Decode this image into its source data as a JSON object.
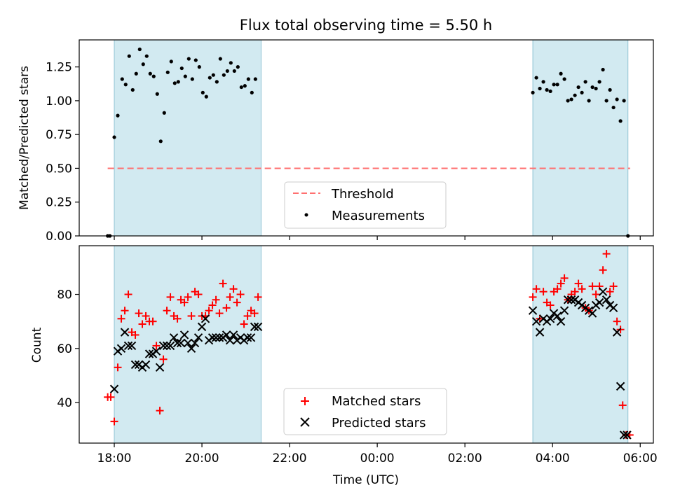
{
  "chart_data": [
    {
      "type": "scatter",
      "title": "Flux total observing time = 5.50 h",
      "ylabel": "Matched/Predicted stars",
      "xlabel": "",
      "x_unit": "hours since 18:00 UTC",
      "xlim": [
        -0.8,
        12.3
      ],
      "ylim": [
        0.0,
        1.45
      ],
      "yticks": [
        "0.00",
        "0.25",
        "0.50",
        "0.75",
        "1.00",
        "1.25"
      ],
      "ytick_values": [
        0,
        0.25,
        0.5,
        0.75,
        1.0,
        1.25
      ],
      "shaded_spans": [
        [
          0.0,
          3.35
        ],
        [
          9.55,
          11.72
        ]
      ],
      "span_color": "#add8e6",
      "threshold": {
        "name": "Threshold",
        "value": 0.5,
        "x_range": [
          -0.15,
          11.77
        ],
        "color": "#ff7070"
      },
      "legend": {
        "placement": "lower center",
        "entries": [
          "Threshold",
          "Measurements"
        ]
      },
      "series": [
        {
          "name": "Measurements",
          "color": "#000000",
          "points": [
            [
              -0.15,
              0.0
            ],
            [
              -0.1,
              0.0
            ],
            [
              0.0,
              0.73
            ],
            [
              0.08,
              0.89
            ],
            [
              0.18,
              1.16
            ],
            [
              0.26,
              1.12
            ],
            [
              0.34,
              1.33
            ],
            [
              0.42,
              1.08
            ],
            [
              0.5,
              1.2
            ],
            [
              0.58,
              1.38
            ],
            [
              0.66,
              1.27
            ],
            [
              0.74,
              1.33
            ],
            [
              0.82,
              1.2
            ],
            [
              0.9,
              1.18
            ],
            [
              0.98,
              1.05
            ],
            [
              1.06,
              0.7
            ],
            [
              1.14,
              0.91
            ],
            [
              1.22,
              1.21
            ],
            [
              1.3,
              1.29
            ],
            [
              1.38,
              1.13
            ],
            [
              1.46,
              1.14
            ],
            [
              1.54,
              1.24
            ],
            [
              1.62,
              1.18
            ],
            [
              1.7,
              1.31
            ],
            [
              1.78,
              1.16
            ],
            [
              1.86,
              1.3
            ],
            [
              1.94,
              1.25
            ],
            [
              2.02,
              1.06
            ],
            [
              2.1,
              1.03
            ],
            [
              2.18,
              1.17
            ],
            [
              2.26,
              1.19
            ],
            [
              2.34,
              1.14
            ],
            [
              2.42,
              1.31
            ],
            [
              2.5,
              1.19
            ],
            [
              2.58,
              1.22
            ],
            [
              2.66,
              1.28
            ],
            [
              2.74,
              1.22
            ],
            [
              2.82,
              1.25
            ],
            [
              2.9,
              1.1
            ],
            [
              2.98,
              1.11
            ],
            [
              3.06,
              1.16
            ],
            [
              3.14,
              1.06
            ],
            [
              3.22,
              1.16
            ],
            [
              9.55,
              1.06
            ],
            [
              9.63,
              1.17
            ],
            [
              9.71,
              1.09
            ],
            [
              9.79,
              1.14
            ],
            [
              9.87,
              1.08
            ],
            [
              9.95,
              1.07
            ],
            [
              10.03,
              1.12
            ],
            [
              10.11,
              1.12
            ],
            [
              10.19,
              1.2
            ],
            [
              10.27,
              1.16
            ],
            [
              10.35,
              1.0
            ],
            [
              10.43,
              1.01
            ],
            [
              10.51,
              1.04
            ],
            [
              10.59,
              1.1
            ],
            [
              10.67,
              1.06
            ],
            [
              10.75,
              1.14
            ],
            [
              10.83,
              1.0
            ],
            [
              10.91,
              1.1
            ],
            [
              10.99,
              1.09
            ],
            [
              11.07,
              1.14
            ],
            [
              11.15,
              1.23
            ],
            [
              11.23,
              1.0
            ],
            [
              11.31,
              1.08
            ],
            [
              11.39,
              0.95
            ],
            [
              11.47,
              1.01
            ],
            [
              11.55,
              0.85
            ],
            [
              11.63,
              1.0
            ],
            [
              11.72,
              0.0
            ]
          ]
        }
      ]
    },
    {
      "type": "scatter",
      "title": "",
      "xlabel": "Time (UTC)",
      "ylabel": "Count",
      "x_unit": "hours since 18:00 UTC",
      "xlim": [
        -0.8,
        12.3
      ],
      "ylim": [
        25,
        98
      ],
      "yticks": [
        "40",
        "60",
        "80"
      ],
      "ytick_values": [
        40,
        60,
        80
      ],
      "xticks": [
        "18:00",
        "20:00",
        "22:00",
        "00:00",
        "02:00",
        "04:00",
        "06:00"
      ],
      "xtick_values": [
        0,
        2,
        4,
        6,
        8,
        10,
        12
      ],
      "shaded_spans": [
        [
          0.0,
          3.35
        ],
        [
          9.55,
          11.72
        ]
      ],
      "span_color": "#add8e6",
      "legend": {
        "placement": "lower center",
        "entries": [
          "Matched stars",
          "Predicted stars"
        ]
      },
      "series": [
        {
          "name": "Matched stars",
          "marker": "plus",
          "color": "#ff0000",
          "points": [
            [
              -0.15,
              42
            ],
            [
              -0.08,
              42
            ],
            [
              0.0,
              33
            ],
            [
              0.08,
              53
            ],
            [
              0.16,
              71
            ],
            [
              0.24,
              74
            ],
            [
              0.32,
              80
            ],
            [
              0.4,
              66
            ],
            [
              0.48,
              65
            ],
            [
              0.56,
              73
            ],
            [
              0.64,
              69
            ],
            [
              0.72,
              72
            ],
            [
              0.8,
              70
            ],
            [
              0.88,
              70
            ],
            [
              0.96,
              61
            ],
            [
              1.04,
              37
            ],
            [
              1.12,
              56
            ],
            [
              1.2,
              74
            ],
            [
              1.28,
              79
            ],
            [
              1.36,
              72
            ],
            [
              1.44,
              71
            ],
            [
              1.52,
              78
            ],
            [
              1.6,
              77
            ],
            [
              1.68,
              79
            ],
            [
              1.76,
              72
            ],
            [
              1.84,
              81
            ],
            [
              1.92,
              80
            ],
            [
              2.0,
              72
            ],
            [
              2.08,
              72
            ],
            [
              2.16,
              74
            ],
            [
              2.24,
              76
            ],
            [
              2.32,
              78
            ],
            [
              2.4,
              73
            ],
            [
              2.48,
              84
            ],
            [
              2.56,
              75
            ],
            [
              2.64,
              79
            ],
            [
              2.72,
              82
            ],
            [
              2.8,
              77
            ],
            [
              2.88,
              80
            ],
            [
              2.96,
              69
            ],
            [
              3.04,
              72
            ],
            [
              3.12,
              74
            ],
            [
              3.2,
              73
            ],
            [
              3.28,
              79
            ],
            [
              9.55,
              79
            ],
            [
              9.63,
              82
            ],
            [
              9.71,
              71
            ],
            [
              9.79,
              81
            ],
            [
              9.87,
              77
            ],
            [
              9.95,
              76
            ],
            [
              10.03,
              81
            ],
            [
              10.11,
              82
            ],
            [
              10.19,
              84
            ],
            [
              10.27,
              86
            ],
            [
              10.35,
              78
            ],
            [
              10.43,
              80
            ],
            [
              10.51,
              81
            ],
            [
              10.59,
              84
            ],
            [
              10.67,
              82
            ],
            [
              10.75,
              75
            ],
            [
              10.83,
              74
            ],
            [
              10.91,
              83
            ],
            [
              10.99,
              80
            ],
            [
              11.07,
              83
            ],
            [
              11.15,
              89
            ],
            [
              11.23,
              95
            ],
            [
              11.31,
              81
            ],
            [
              11.39,
              83
            ],
            [
              11.47,
              70
            ],
            [
              11.55,
              67
            ],
            [
              11.6,
              39
            ],
            [
              11.68,
              28
            ],
            [
              11.76,
              28
            ]
          ]
        },
        {
          "name": "Predicted stars",
          "marker": "x",
          "color": "#000000",
          "points": [
            [
              0.0,
              45
            ],
            [
              0.08,
              59
            ],
            [
              0.16,
              60
            ],
            [
              0.24,
              66
            ],
            [
              0.32,
              61
            ],
            [
              0.4,
              61
            ],
            [
              0.48,
              54
            ],
            [
              0.56,
              54
            ],
            [
              0.64,
              53
            ],
            [
              0.72,
              54
            ],
            [
              0.8,
              58
            ],
            [
              0.88,
              58
            ],
            [
              0.96,
              59
            ],
            [
              1.04,
              53
            ],
            [
              1.12,
              61
            ],
            [
              1.2,
              61
            ],
            [
              1.28,
              61
            ],
            [
              1.36,
              64
            ],
            [
              1.44,
              62
            ],
            [
              1.52,
              62
            ],
            [
              1.6,
              65
            ],
            [
              1.68,
              62
            ],
            [
              1.76,
              60
            ],
            [
              1.84,
              62
            ],
            [
              1.92,
              64
            ],
            [
              2.0,
              68
            ],
            [
              2.08,
              71
            ],
            [
              2.16,
              63
            ],
            [
              2.24,
              64
            ],
            [
              2.32,
              64
            ],
            [
              2.4,
              64
            ],
            [
              2.48,
              64
            ],
            [
              2.56,
              65
            ],
            [
              2.64,
              63
            ],
            [
              2.72,
              65
            ],
            [
              2.8,
              63
            ],
            [
              2.88,
              64
            ],
            [
              2.96,
              63
            ],
            [
              3.04,
              64
            ],
            [
              3.12,
              64
            ],
            [
              3.2,
              68
            ],
            [
              3.28,
              68
            ],
            [
              9.55,
              74
            ],
            [
              9.63,
              70
            ],
            [
              9.71,
              66
            ],
            [
              9.79,
              71
            ],
            [
              9.87,
              70
            ],
            [
              9.95,
              71
            ],
            [
              10.03,
              73
            ],
            [
              10.11,
              72
            ],
            [
              10.19,
              70
            ],
            [
              10.27,
              74
            ],
            [
              10.35,
              78
            ],
            [
              10.43,
              78
            ],
            [
              10.51,
              78
            ],
            [
              10.59,
              77
            ],
            [
              10.67,
              76
            ],
            [
              10.75,
              75
            ],
            [
              10.83,
              74
            ],
            [
              10.91,
              73
            ],
            [
              10.99,
              76
            ],
            [
              11.07,
              77
            ],
            [
              11.15,
              81
            ],
            [
              11.23,
              78
            ],
            [
              11.31,
              76
            ],
            [
              11.39,
              75
            ],
            [
              11.47,
              66
            ],
            [
              11.55,
              46
            ],
            [
              11.63,
              28
            ],
            [
              11.7,
              28
            ]
          ]
        }
      ]
    }
  ]
}
